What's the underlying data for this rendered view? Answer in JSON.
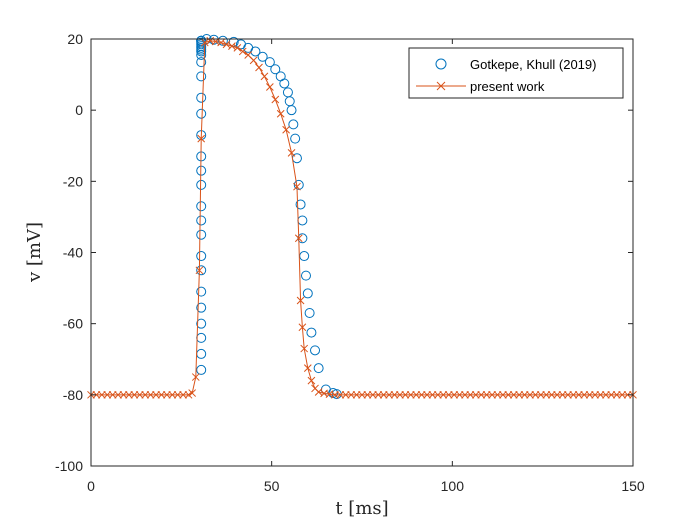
{
  "chart_data": {
    "type": "line",
    "xlabel": "t [ms]",
    "ylabel": "v [mV]",
    "xlim": [
      0,
      150
    ],
    "ylim": [
      -100,
      20
    ],
    "xticks": [
      "0",
      "50",
      "100",
      "150"
    ],
    "yticks": [
      "20",
      "0",
      "-20",
      "-40",
      "-60",
      "-80",
      "-100"
    ],
    "grid": false,
    "legend_position": "top-right",
    "colors": {
      "reference": "#0072BD",
      "present": "#D95319",
      "axis": "#262626"
    },
    "series": [
      {
        "name": "Gotkepe, Khull (2019)",
        "style": "markers",
        "marker": "circle",
        "x": [
          30.5,
          30.5,
          30.5,
          30.5,
          30.5,
          30.5,
          30.5,
          30.5,
          30.5,
          30.5,
          30.5,
          30.5,
          30.5,
          30.5,
          30.5,
          30.5,
          30.5,
          30.5,
          30.5,
          30.5,
          30.5,
          30.5,
          30.5,
          30.5,
          30.5,
          30.5,
          30.5,
          30.5,
          30.5,
          32,
          34,
          36.5,
          39.5,
          41.5,
          43.5,
          45.5,
          47.5,
          49.5,
          51,
          52.5,
          53.5,
          54.5,
          55,
          55.5,
          56,
          56.5,
          57,
          57.5,
          58,
          58.5,
          58.5,
          59,
          59.5,
          60,
          60.5,
          61,
          62,
          63,
          65,
          67,
          68
        ],
        "y": [
          -73,
          -68.5,
          -64,
          -60,
          -55.5,
          -51,
          -45,
          -41,
          -35,
          -31,
          -27,
          -21,
          -17,
          -13,
          -7,
          -1,
          3.5,
          9.5,
          13.5,
          15.5,
          16.5,
          17,
          17.5,
          18,
          18.5,
          19,
          19.5,
          19.5,
          19.5,
          20,
          19.8,
          19.5,
          19.2,
          18.5,
          17.5,
          16.5,
          15,
          13.5,
          11.5,
          9.5,
          7.5,
          5,
          2.5,
          0,
          -4,
          -8,
          -13.5,
          -21,
          -26.5,
          -31,
          -36,
          -41,
          -46.5,
          -51.5,
          -57,
          -62.5,
          -67.5,
          -72.5,
          -78.5,
          -79.5,
          -79.8
        ]
      },
      {
        "name": "present work",
        "style": "line+markers",
        "marker": "x",
        "x": [
          0,
          1.5,
          3,
          4.5,
          6,
          7.5,
          9,
          10.5,
          12,
          13.5,
          15,
          16.5,
          18,
          19.5,
          21,
          22.5,
          24,
          25.5,
          27,
          28,
          29,
          30,
          30.5,
          31.5,
          33,
          34.5,
          36,
          37.5,
          39,
          40.5,
          42,
          43.5,
          45,
          46.5,
          48,
          49.5,
          51,
          52.5,
          54,
          55.5,
          57,
          57.5,
          58,
          58.5,
          59,
          60,
          61,
          62,
          63,
          64.5,
          66,
          67.5,
          69,
          70.5,
          72,
          73.5,
          75,
          76.5,
          78,
          79.5,
          81,
          82.5,
          84,
          85.5,
          87,
          88.5,
          90,
          91.5,
          93,
          94.5,
          96,
          97.5,
          99,
          100.5,
          102,
          103.5,
          105,
          106.5,
          108,
          109.5,
          111,
          112.5,
          114,
          115.5,
          117,
          118.5,
          120,
          121.5,
          123,
          124.5,
          126,
          127.5,
          129,
          130.5,
          132,
          133.5,
          135,
          136.5,
          138,
          139.5,
          141,
          142.5,
          144,
          145.5,
          147,
          148.5,
          150
        ],
        "y": [
          -80,
          -80,
          -80,
          -80,
          -80,
          -80,
          -80,
          -80,
          -80,
          -80,
          -80,
          -80,
          -80,
          -80,
          -80,
          -80,
          -80,
          -80,
          -80,
          -79.5,
          -75,
          -45,
          -8,
          19,
          19.5,
          19.3,
          19,
          18.5,
          18,
          17.5,
          16.5,
          15.5,
          14,
          12,
          9.5,
          6.5,
          3,
          -1,
          -5.5,
          -12,
          -21.5,
          -36,
          -53.5,
          -61,
          -67,
          -72.5,
          -76,
          -78.2,
          -79.2,
          -79.6,
          -79.8,
          -80,
          -80,
          -80,
          -80,
          -80,
          -80,
          -80,
          -80,
          -80,
          -80,
          -80,
          -80,
          -80,
          -80,
          -80,
          -80,
          -80,
          -80,
          -80,
          -80,
          -80,
          -80,
          -80,
          -80,
          -80,
          -80,
          -80,
          -80,
          -80,
          -80,
          -80,
          -80,
          -80,
          -80,
          -80,
          -80,
          -80,
          -80,
          -80,
          -80,
          -80,
          -80,
          -80,
          -80,
          -80,
          -80,
          -80,
          -80,
          -80,
          -80,
          -80,
          -80,
          -80,
          -80,
          -80,
          -80
        ]
      }
    ]
  }
}
